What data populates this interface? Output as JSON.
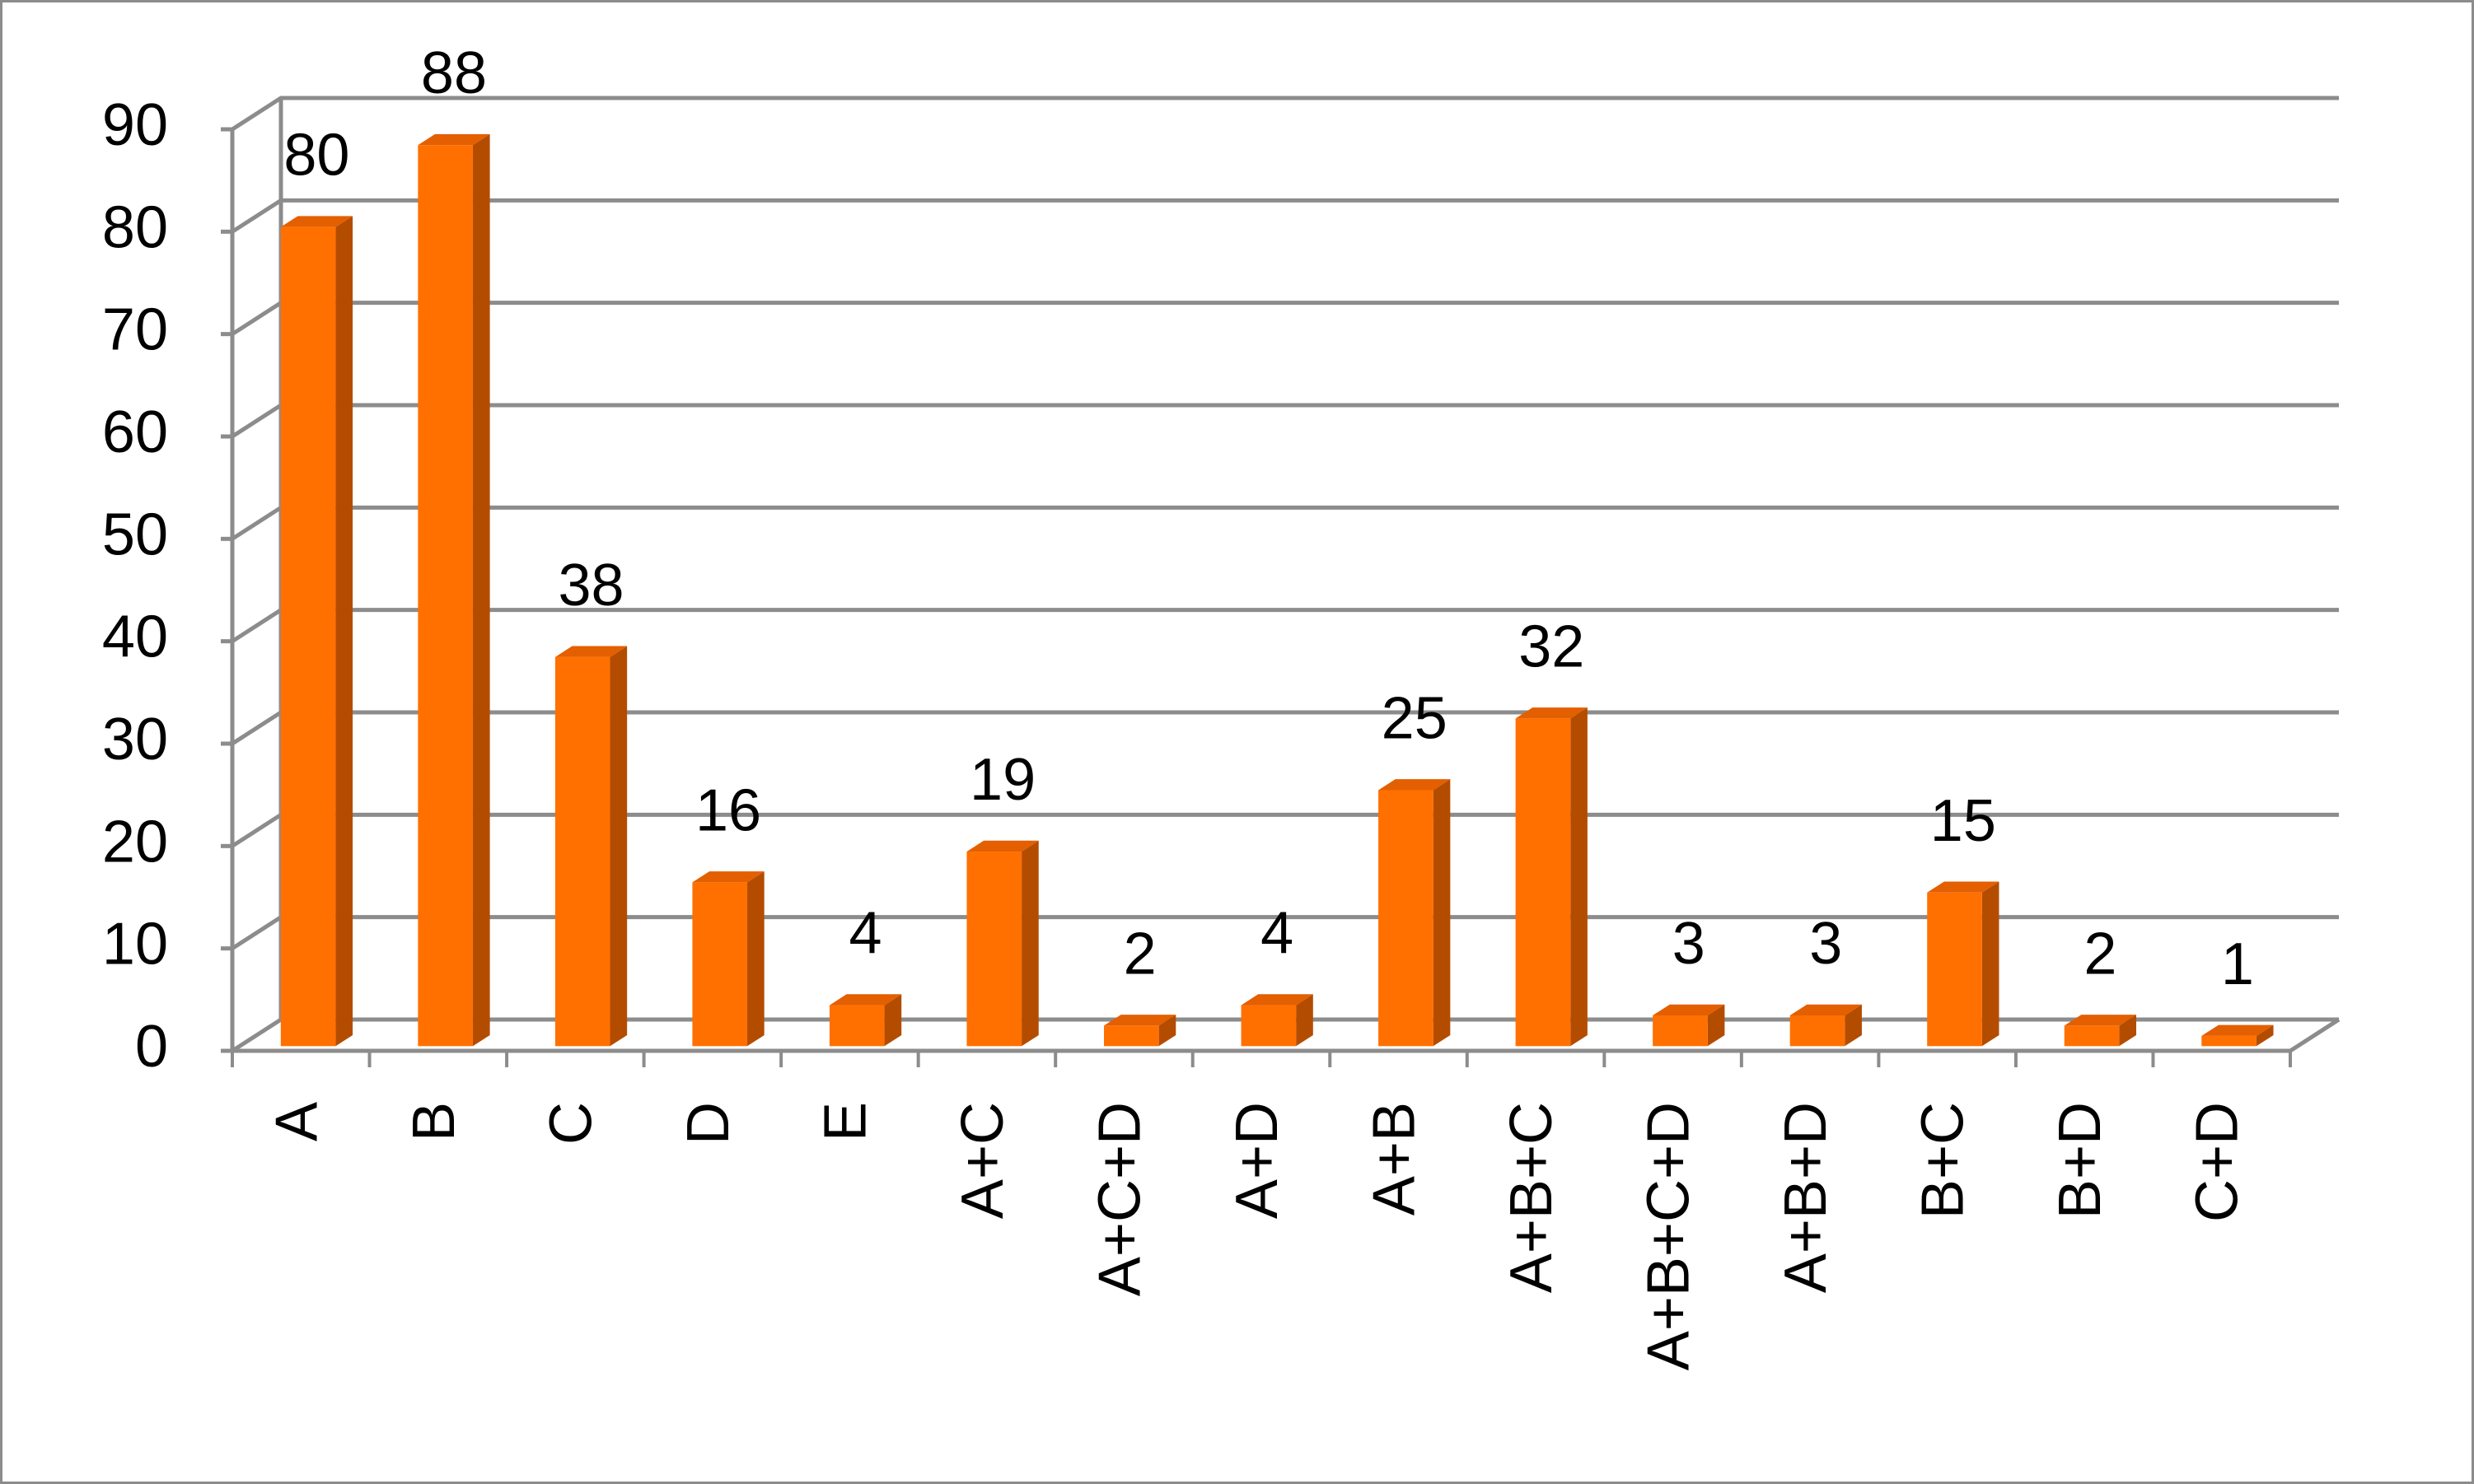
{
  "chart_data": {
    "type": "bar3d",
    "categories": [
      "A",
      "B",
      "C",
      "D",
      "E",
      "A+C",
      "A+C+D",
      "A+D",
      "A+B",
      "A+B+C",
      "A+B+C+D",
      "A+B+D",
      "B+C",
      "B+D",
      "C+D"
    ],
    "values": [
      80,
      88,
      38,
      16,
      4,
      19,
      2,
      4,
      25,
      32,
      3,
      3,
      15,
      2,
      1
    ],
    "color": "#ff7000",
    "ylim": [
      0,
      90
    ],
    "yticks": [
      0,
      10,
      20,
      30,
      40,
      50,
      60,
      70,
      80,
      90
    ],
    "grid": true
  }
}
